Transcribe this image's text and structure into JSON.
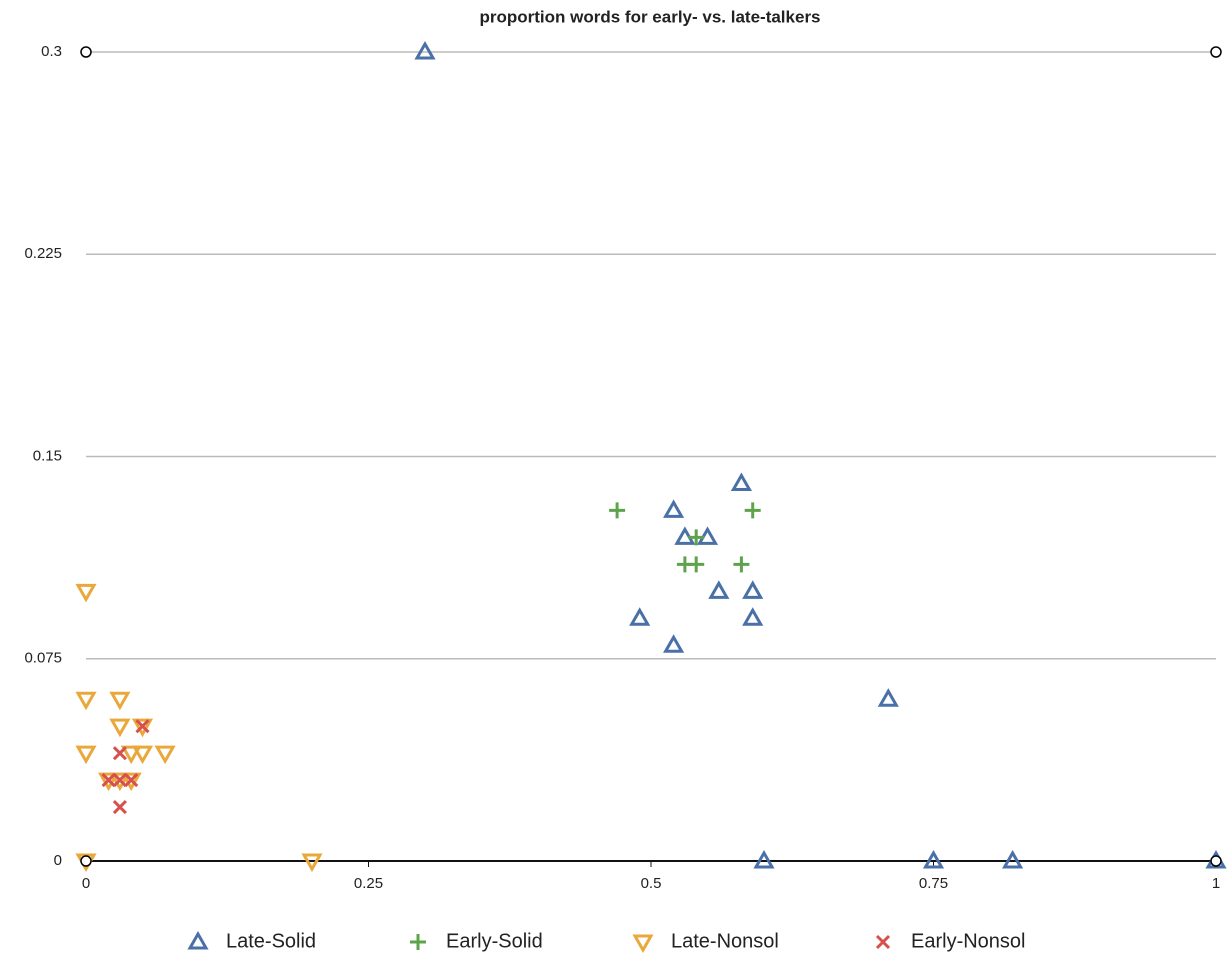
{
  "chart_data": {
    "type": "scatter",
    "title": "proportion words for early- vs. late-talkers",
    "xlim": [
      0,
      1
    ],
    "xticks": [
      0,
      0.25,
      0.5,
      0.75,
      1
    ],
    "ylim": [
      0,
      0.3
    ],
    "yticks": [
      0,
      0.075,
      0.15,
      0.225,
      0.3
    ],
    "grid": true,
    "legend": "bottom",
    "series": [
      {
        "name": "Late-Solid",
        "color": "#4a70a8",
        "marker": "triangle-up",
        "x": [
          0.3,
          0.52,
          0.53,
          0.55,
          0.58,
          0.56,
          0.59,
          0.49,
          0.59,
          0.52,
          0.71,
          0.6,
          0.75,
          0.82,
          1
        ],
        "values": [
          0.3,
          0.13,
          0.12,
          0.12,
          0.14,
          0.1,
          0.1,
          0.09,
          0.09,
          0.08,
          0.06,
          0,
          0,
          0,
          0
        ]
      },
      {
        "name": "Early-Solid",
        "color": "#5ea34c",
        "marker": "plus",
        "x": [
          0.47,
          0.59,
          0.54,
          0.53,
          0.54,
          0.58
        ],
        "values": [
          0.13,
          0.13,
          0.12,
          0.11,
          0.11,
          0.11
        ]
      },
      {
        "name": "Late-Nonsol",
        "color": "#eaa83a",
        "marker": "triangle-down",
        "x": [
          0,
          0,
          0.03,
          0.03,
          0.05,
          0,
          0.04,
          0.05,
          0.07,
          0.02,
          0.03,
          0.04,
          0,
          0.2
        ],
        "values": [
          0.1,
          0.06,
          0.06,
          0.05,
          0.05,
          0.04,
          0.04,
          0.04,
          0.04,
          0.03,
          0.03,
          0.03,
          0,
          0
        ]
      },
      {
        "name": "Early-Nonsol",
        "color": "#d6504c",
        "marker": "x",
        "x": [
          0.05,
          0.03,
          0.02,
          0.03,
          0.04,
          0.03
        ],
        "values": [
          0.05,
          0.04,
          0.03,
          0.03,
          0.03,
          0.02
        ]
      },
      {
        "color": "#000000",
        "marker": "circle",
        "x": [
          0,
          1,
          0,
          1
        ],
        "values": [
          0.3,
          0.3,
          0,
          0
        ]
      }
    ]
  }
}
